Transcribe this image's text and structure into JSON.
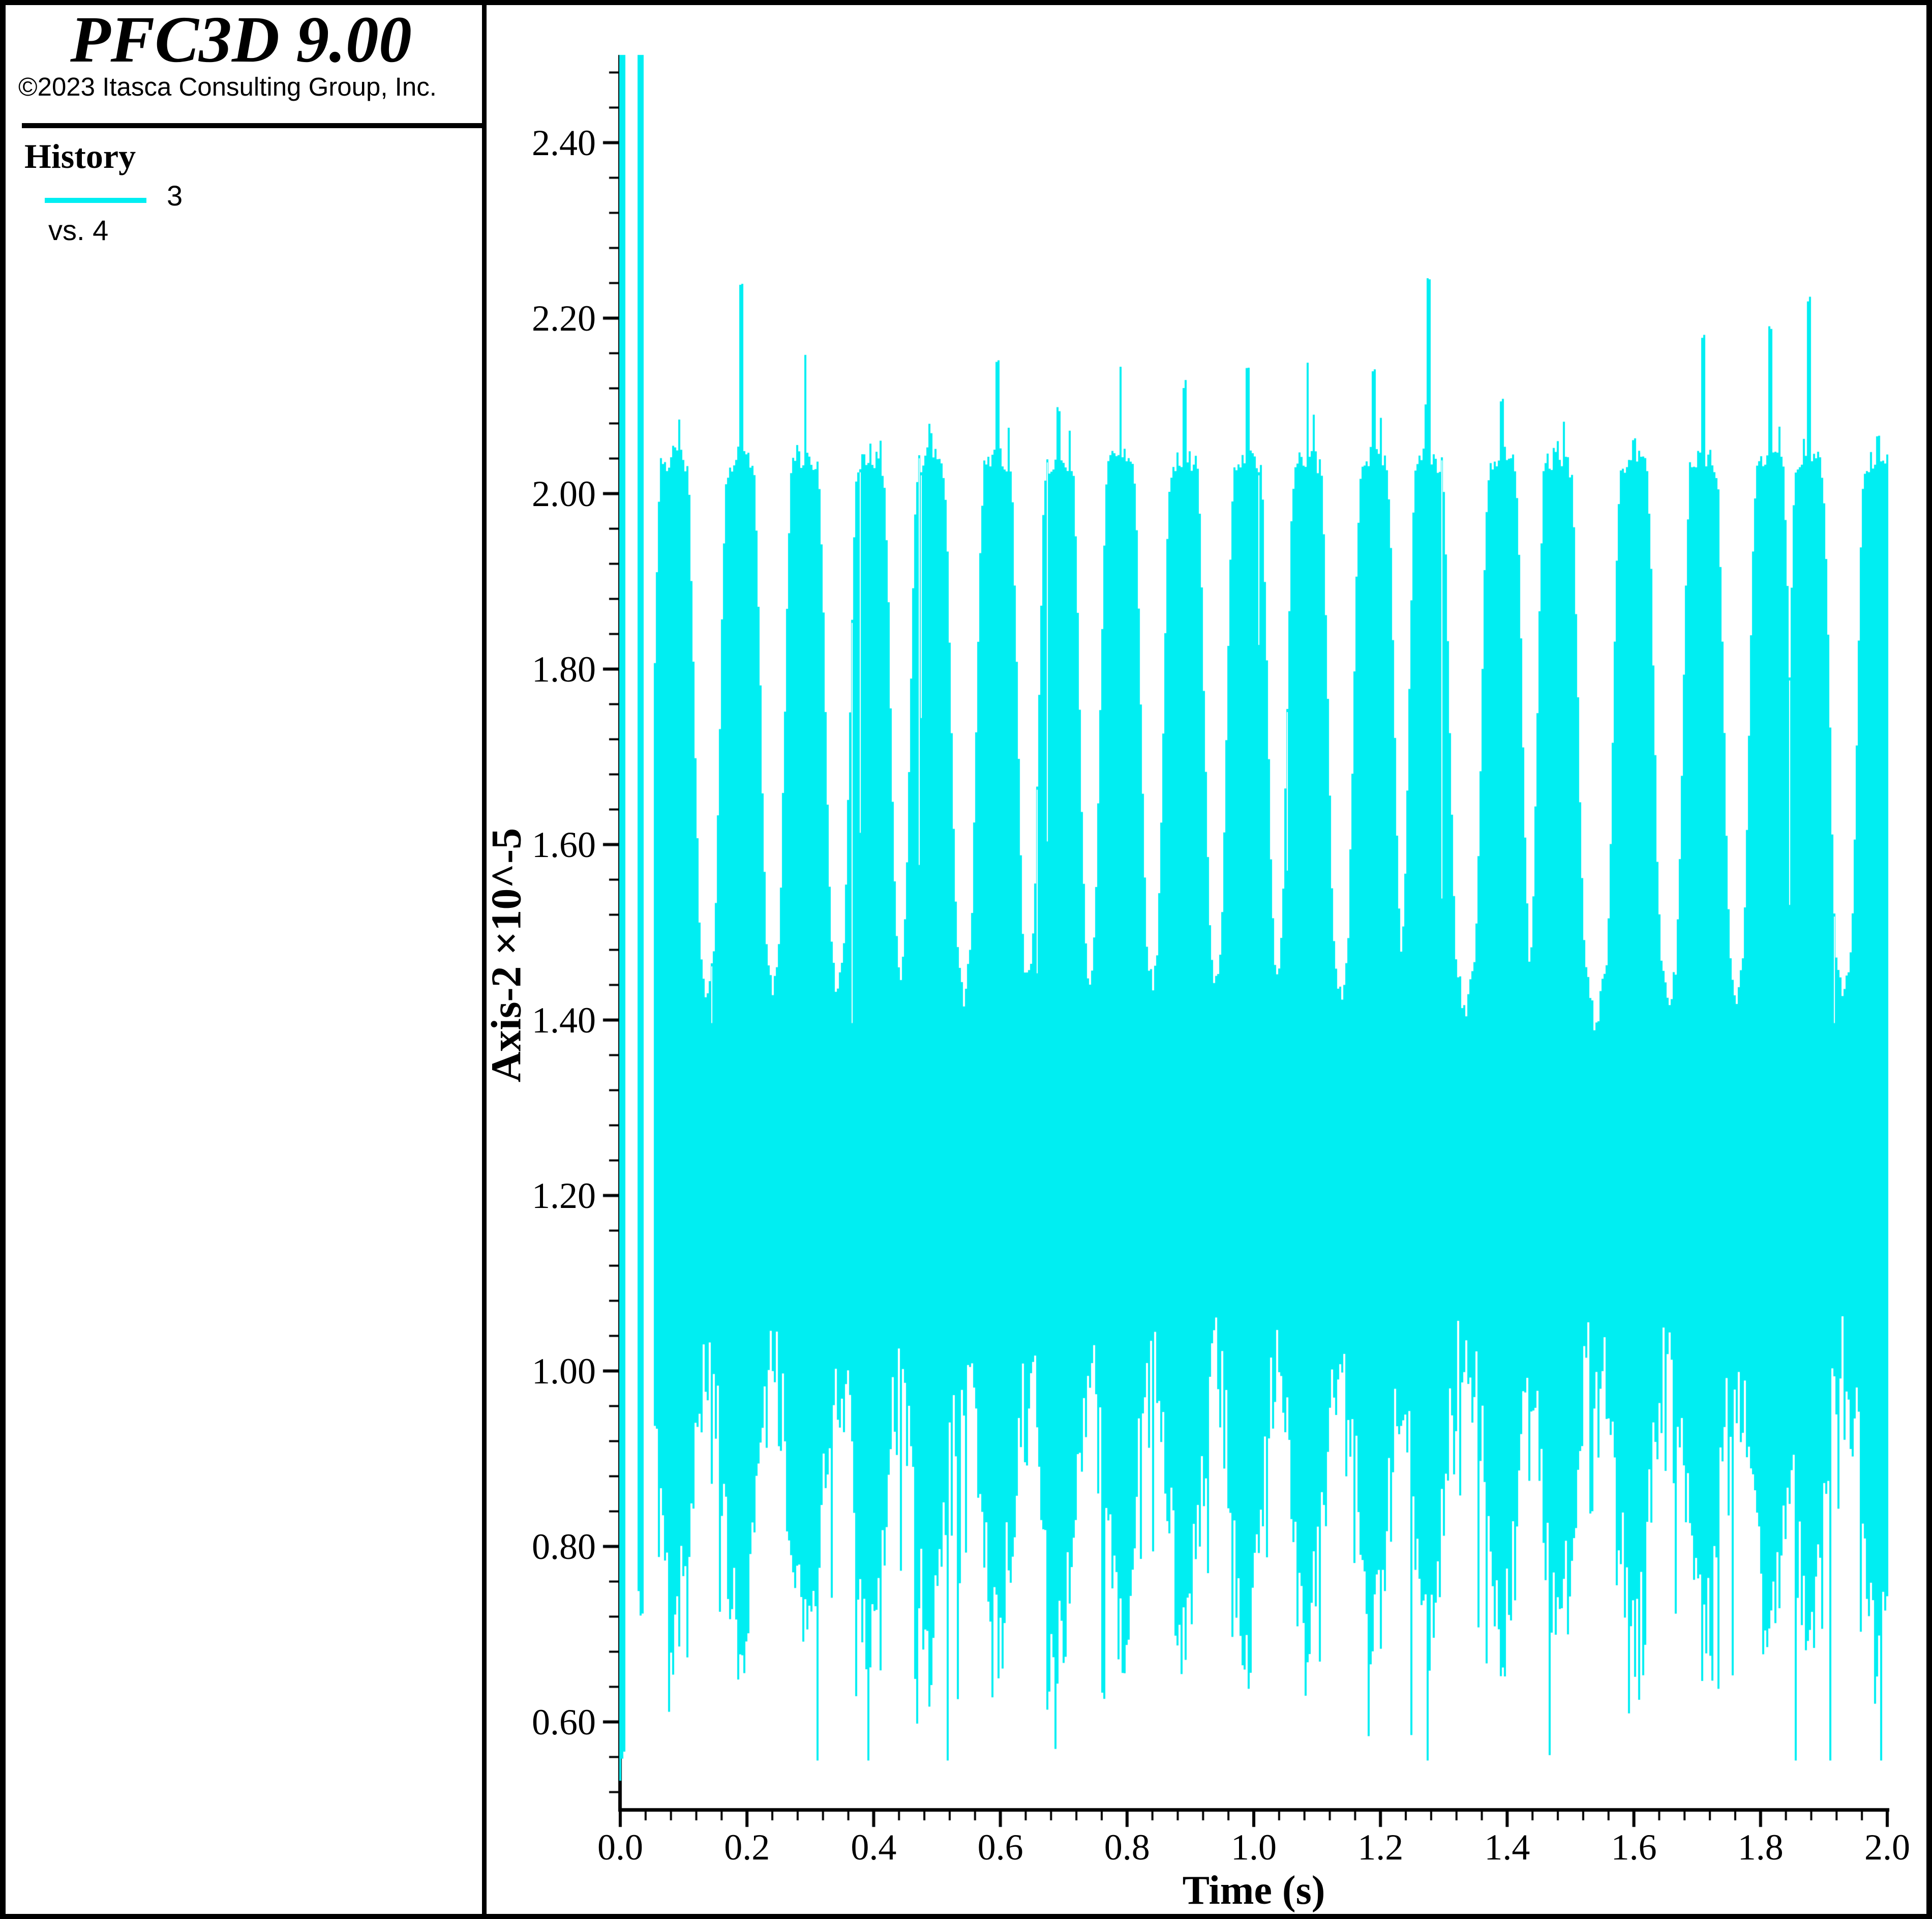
{
  "window": {
    "background": "#ffffff",
    "border_color": "#000000"
  },
  "sidebar": {
    "title": "PFC3D 9.00",
    "copyright": "©2023 Itasca Consulting Group, Inc.",
    "section_heading": "History",
    "legend": {
      "series_label": "3",
      "vs_label": "vs. 4",
      "line_color": "#00EEF2"
    }
  },
  "chart": {
    "x_axis": {
      "title": "Time (s)",
      "tick_labels": [
        "0.0",
        "0.2",
        "0.4",
        "0.6",
        "0.8",
        "1.0",
        "1.2",
        "1.4",
        "1.6",
        "1.8",
        "2.0"
      ],
      "tick_values": [
        0.0,
        0.2,
        0.4,
        0.6,
        0.8,
        1.0,
        1.2,
        1.4,
        1.6,
        1.8,
        2.0
      ],
      "minor_step": 0.04,
      "range": [
        0.0,
        2.0
      ],
      "color": "#000000"
    },
    "y_axis": {
      "title": "Axis-2 ×10^-5",
      "tick_labels": [
        "2.40",
        "2.20",
        "2.00",
        "1.80",
        "1.60",
        "1.40",
        "1.20",
        "1.00",
        "0.80",
        "0.60"
      ],
      "tick_values": [
        2.4,
        2.2,
        2.0,
        1.8,
        1.6,
        1.4,
        1.2,
        1.0,
        0.8,
        0.6
      ],
      "minor_step": 0.04,
      "range": [
        0.5,
        2.5
      ],
      "color": "#000000"
    }
  },
  "chart_data": {
    "type": "line",
    "title": "History",
    "series": [
      {
        "name": "3",
        "vs": "4",
        "color": "#00EEF2"
      }
    ],
    "xlabel": "Time (s)",
    "ylabel": "Axis-2 ×10^-5",
    "xlim": [
      0.0,
      2.0
    ],
    "ylim": [
      0.5,
      2.5
    ],
    "y_unit_scale": "1e-5",
    "grid": false,
    "legend_position": "sidebar-top-left",
    "description": "Dense high-frequency oscillatory history signal filling the band between its envelopes; ~20 bounce humps (period ~0.1 s), upper plateau ~2.03, inter-hump upper envelope dips to ~1.40-1.46, lower envelope ~0.95-1.05 with needles down to ~0.56; two initial full-range spikes.",
    "initial_spikes": [
      {
        "t_start": 0.0,
        "t_end": 0.0065,
        "top": 2.5,
        "bottom": 0.53
      },
      {
        "t_start": 0.0265,
        "t_end": 0.038,
        "top": 2.5,
        "bottom": 0.72
      }
    ],
    "humps": [
      {
        "t": 0.085,
        "peak": 2.06
      },
      {
        "t": 0.19,
        "peak": 2.25
      },
      {
        "t": 0.292,
        "peak": 2.165
      },
      {
        "t": 0.395,
        "peak": 2.06
      },
      {
        "t": 0.49,
        "peak": 2.08
      },
      {
        "t": 0.595,
        "peak": 2.155
      },
      {
        "t": 0.693,
        "peak": 2.105
      },
      {
        "t": 0.79,
        "peak": 2.15
      },
      {
        "t": 0.89,
        "peak": 2.13
      },
      {
        "t": 0.99,
        "peak": 2.145
      },
      {
        "t": 1.085,
        "peak": 2.15
      },
      {
        "t": 1.19,
        "peak": 2.15
      },
      {
        "t": 1.277,
        "peak": 2.255
      },
      {
        "t": 1.392,
        "peak": 2.11
      },
      {
        "t": 1.48,
        "peak": 2.07
      },
      {
        "t": 1.6,
        "peak": 2.065
      },
      {
        "t": 1.71,
        "peak": 2.185
      },
      {
        "t": 1.815,
        "peak": 2.195
      },
      {
        "t": 1.877,
        "peak": 2.225
      },
      {
        "t": 1.985,
        "peak": 2.075
      }
    ],
    "envelope": {
      "hump_plateau_top": 2.03,
      "inter_hump_top": 1.44,
      "hump_rise_halfwidth": 0.045,
      "bottom_between_humps": 1.0,
      "bottom_at_hump": 0.7,
      "bottom_min": 0.556
    },
    "render_seed": 1234
  }
}
